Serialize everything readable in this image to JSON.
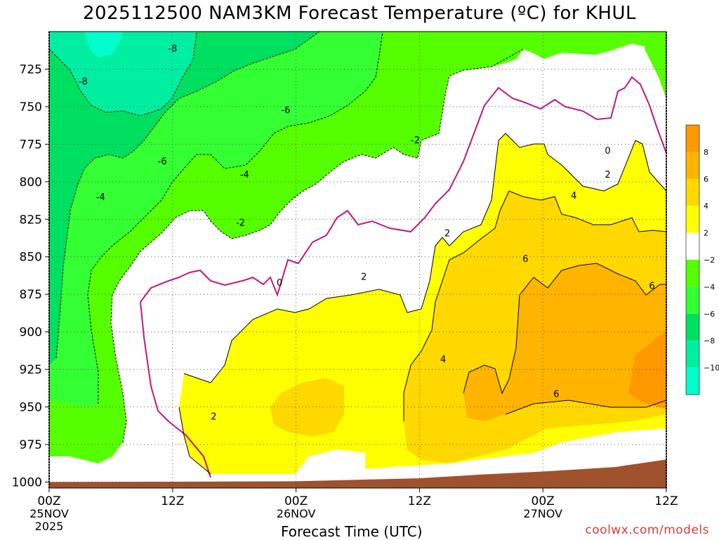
{
  "title": "2025112500 NAM3KM Forecast Temperature (ºC) for KHUL",
  "credit": "coolwx.com/models",
  "colors": {
    "c_m10": "#00ffcc",
    "c_m8": "#00eea0",
    "c_m6": "#00e060",
    "c_m4": "#33ff33",
    "c_m2": "#55ff00",
    "c_0": "#ffffff",
    "c_2": "#ffff00",
    "c_4": "#ffd800",
    "c_6": "#ffb400",
    "c_8": "#ff9900",
    "ground": "#a0522d",
    "freezing_line": "#c0187e",
    "credit": "#d43c3c"
  },
  "chart_data": {
    "type": "time-height contour (filled)",
    "title": "2025112500 NAM3KM Forecast Temperature (ºC) for KHUL",
    "xlabel": "Forecast Time (UTC)",
    "ylabel": "",
    "y_axis": {
      "quantity": "pressure (hPa)",
      "inverted": true,
      "range": [
        1004,
        700
      ],
      "ticks": [
        725,
        750,
        775,
        800,
        825,
        850,
        875,
        900,
        925,
        950,
        975,
        1000
      ]
    },
    "x_axis": {
      "range_hours": [
        0,
        60
      ],
      "ticks": [
        {
          "hour": 0,
          "label": "00Z",
          "sub": "25NOV",
          "sub2": "2025"
        },
        {
          "hour": 12,
          "label": "12Z",
          "sub": "",
          "sub2": ""
        },
        {
          "hour": 24,
          "label": "00Z",
          "sub": "26NOV",
          "sub2": ""
        },
        {
          "hour": 36,
          "label": "12Z",
          "sub": "",
          "sub2": ""
        },
        {
          "hour": 48,
          "label": "00Z",
          "sub": "27NOV",
          "sub2": ""
        },
        {
          "hour": 60,
          "label": "12Z",
          "sub": "",
          "sub2": ""
        }
      ]
    },
    "grid": true,
    "legend_position": "right",
    "colorbar": {
      "levels": [
        8,
        6,
        4,
        2,
        -2,
        -4,
        -6,
        -8,
        -10
      ],
      "bands": [
        "c_8",
        "c_6",
        "c_4",
        "c_2",
        "c_0",
        "c_m2",
        "c_m4",
        "c_m6",
        "c_m8",
        "c_m10"
      ]
    },
    "contour_labels": [
      {
        "text": "-8",
        "hour": 12.0,
        "p": 711
      },
      {
        "text": "-8",
        "hour": 3.3,
        "p": 733
      },
      {
        "text": "-6",
        "hour": 23.0,
        "p": 752
      },
      {
        "text": "-6",
        "hour": 11.0,
        "p": 786
      },
      {
        "text": "-4",
        "hour": 19.0,
        "p": 795
      },
      {
        "text": "-4",
        "hour": 5.0,
        "p": 810
      },
      {
        "text": "-2",
        "hour": 35.6,
        "p": 772
      },
      {
        "text": "-2",
        "hour": 18.6,
        "p": 827
      },
      {
        "text": "0",
        "hour": 54.3,
        "p": 779
      },
      {
        "text": "0",
        "hour": 22.4,
        "p": 867
      },
      {
        "text": "2",
        "hour": 54.3,
        "p": 795
      },
      {
        "text": "2",
        "hour": 38.7,
        "p": 834
      },
      {
        "text": "2",
        "hour": 30.6,
        "p": 863
      },
      {
        "text": "2",
        "hour": 16.0,
        "p": 956
      },
      {
        "text": "4",
        "hour": 51.0,
        "p": 809
      },
      {
        "text": "4",
        "hour": 38.3,
        "p": 918
      },
      {
        "text": "6",
        "hour": 46.3,
        "p": 851
      },
      {
        "text": "6",
        "hour": 58.6,
        "p": 869
      },
      {
        "text": "6",
        "hour": 49.3,
        "p": 941
      }
    ],
    "ground_surface": [
      {
        "hour": 0,
        "p": 1000
      },
      {
        "hour": 12,
        "p": 999.8
      },
      {
        "hour": 24,
        "p": 999.5
      },
      {
        "hour": 36,
        "p": 997.5
      },
      {
        "hour": 42,
        "p": 995
      },
      {
        "hour": 48,
        "p": 993
      },
      {
        "hour": 55,
        "p": 990
      },
      {
        "hour": 60,
        "p": 985
      }
    ]
  }
}
